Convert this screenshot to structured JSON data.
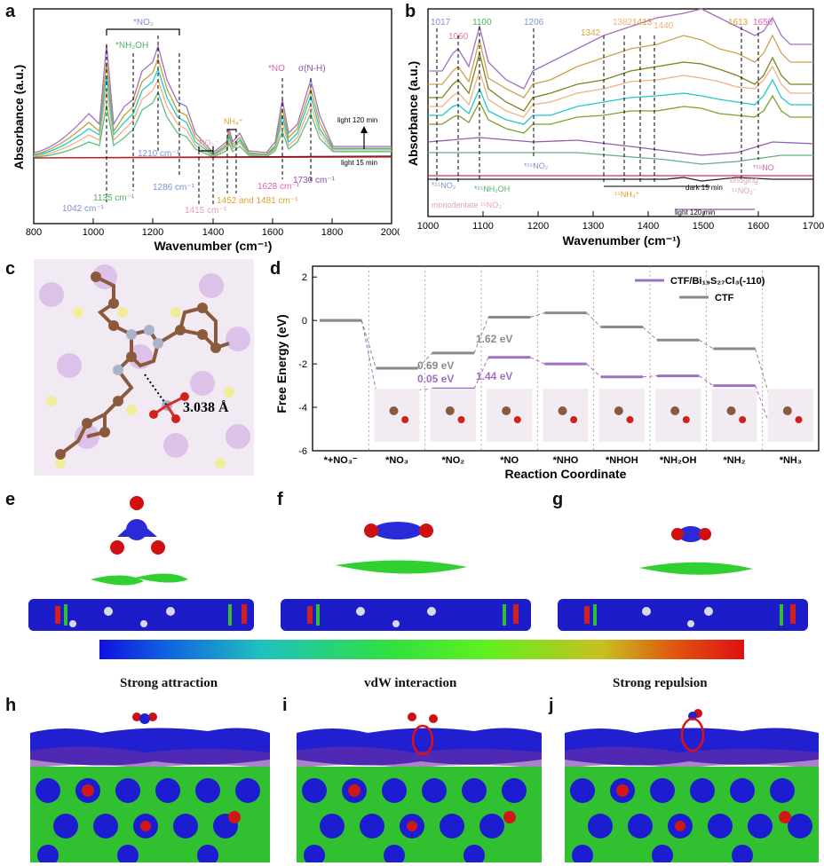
{
  "letters": {
    "a": "a",
    "b": "b",
    "c": "c",
    "d": "d",
    "e": "e",
    "f": "f",
    "g": "g",
    "h": "h",
    "i": "i",
    "j": "j"
  },
  "colors": {
    "purple": "#a070c0",
    "grey": "#8a8a8a",
    "blue": "#2020d0",
    "green": "#30d030",
    "red": "#d01010"
  },
  "panel_a": {
    "ylabel": "Absorbance (a.u.)",
    "xlabel": "Wavenumber (cm⁻¹)",
    "ticks": [
      "800",
      "1000",
      "1200",
      "1400",
      "1600",
      "1800",
      "2000"
    ],
    "ann_no2": "*NO₂",
    "ann_nh2oh": "*NH₂OH",
    "ann_no": "*NO",
    "ann_snh": "σ(N-H)",
    "ann_nh4": "NH₄⁺",
    "ann_no3": "NO₃⁻",
    "p1042": "1042 cm⁻¹",
    "p1135": "1135 cm⁻¹",
    "p1210": "1210 cm⁻¹",
    "p1286": "1286 cm⁻¹",
    "p1415": "1415 cm⁻¹",
    "p1452": "1452 and 1481 cm⁻¹",
    "p1628": "1628 cm⁻¹",
    "p1730": "1730 cm⁻¹",
    "light120": "light 120 min",
    "light15": "light 15 min"
  },
  "panel_b": {
    "ylabel": "Absorbance (a.u.)",
    "xlabel": "Wavenumber (cm⁻¹)",
    "ticks": [
      "1000",
      "1100",
      "1200",
      "1300",
      "1400",
      "1500",
      "1600",
      "1700"
    ],
    "peaks": [
      "1017",
      "1060",
      "1100",
      "1206",
      "1342",
      "1382",
      "1413",
      "1440",
      "1613",
      "1650"
    ],
    "ann_15no2_low": "*¹⁵NO₂",
    "ann_15nh2oh": "*¹⁵NH₂OH",
    "ann_15no2_mid": "*¹⁵NO₂",
    "ann_15no": "*¹⁵NO",
    "ann_15nh4": "¹⁵NH₄⁺",
    "ann_mono": "monodentate ¹⁵NO₃⁻",
    "ann_bridging": "bridging",
    "ann_bridging2": "¹⁵NO₃⁻",
    "dark15": "dark 15 min",
    "light120": "light 120 min"
  },
  "panel_c": {
    "distance": "3.038 Å"
  },
  "chart_data": {
    "type": "line",
    "title": "",
    "xlabel": "Reaction Coordinate",
    "ylabel": "Free Energy (eV)",
    "ylim": [
      -6,
      2.5
    ],
    "yticks": [
      "2",
      "0",
      "-2",
      "-4",
      "-6"
    ],
    "categories": [
      "*+NO₃⁻",
      "*NO₃",
      "*NO₂",
      "*NO",
      "*NHO",
      "*NHOH",
      "*NH₂OH",
      "*NH₂",
      "*NH₃"
    ],
    "series": [
      {
        "name": "CTF/Bi₁₉S₂₇Cl₃(-110)",
        "color": "#a070c0",
        "values": [
          0,
          -3.2,
          -3.15,
          -1.7,
          -2.0,
          -2.6,
          -2.55,
          -3.0,
          -4.8
        ]
      },
      {
        "name": "CTF",
        "color": "#8a8a8a",
        "values": [
          0,
          -2.2,
          -1.5,
          0.15,
          0.35,
          -0.3,
          -0.9,
          -1.3,
          -3.5
        ]
      }
    ],
    "annotations": [
      {
        "text": "0.69 eV",
        "color": "#8a8a8a"
      },
      {
        "text": "0.05 eV",
        "color": "#a070c0"
      },
      {
        "text": "1.62 eV",
        "color": "#8a8a8a"
      },
      {
        "text": "1.44 eV",
        "color": "#a070c0"
      }
    ]
  },
  "scale": {
    "attraction": "Strong attraction",
    "vdw": "vdW interaction",
    "repulsion": "Strong repulsion"
  }
}
